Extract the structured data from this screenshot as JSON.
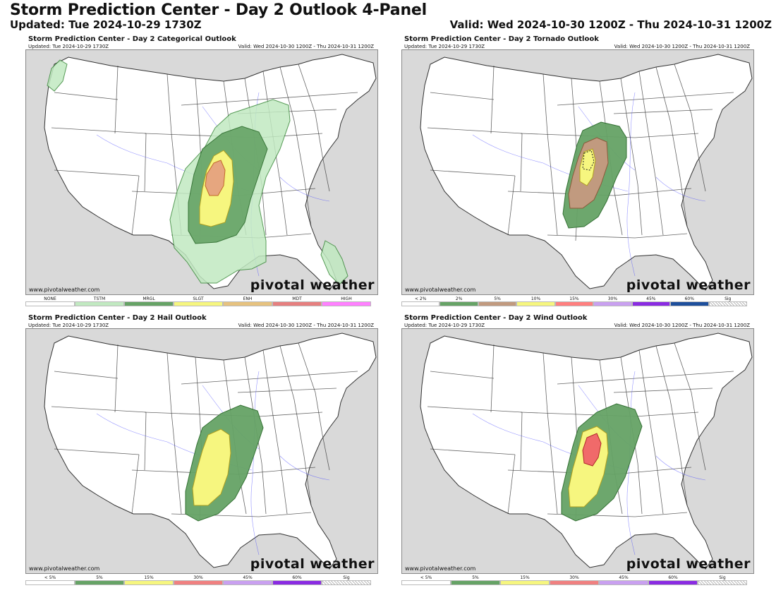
{
  "header": {
    "title": "Storm Prediction Center - Day 2 Outlook 4-Panel",
    "updated": "Updated: Tue 2024-10-29 1730Z",
    "valid": "Valid: Wed 2024-10-30 1200Z - Thu 2024-10-31 1200Z"
  },
  "panels": [
    {
      "id": "categorical",
      "title": "Storm Prediction Center - Day 2 Categorical Outlook",
      "updated": "Updated: Tue 2024-10-29 1730Z",
      "valid": "Valid: Wed 2024-10-30 1200Z - Thu 2024-10-31 1200Z",
      "watermark_url": "www.pivotalweather.com",
      "watermark_logo": "pivotal weather",
      "legend": [
        {
          "label": "NONE",
          "color": "#ffffff"
        },
        {
          "label": "TSTM",
          "color": "#c1e9c1"
        },
        {
          "label": "MRGL",
          "color": "#66a366"
        },
        {
          "label": "SLGT",
          "color": "#f6f67f"
        },
        {
          "label": "ENH",
          "color": "#e6c27f"
        },
        {
          "label": "MDT",
          "color": "#e67f7f"
        },
        {
          "label": "HIGH",
          "color": "#ff80ff"
        }
      ]
    },
    {
      "id": "tornado",
      "title": "Storm Prediction Center - Day 2 Tornado Outlook",
      "updated": "Updated: Tue 2024-10-29 1730Z",
      "valid": "Valid: Wed 2024-10-30 1200Z - Thu 2024-10-31 1200Z",
      "watermark_url": "www.pivotalweather.com",
      "watermark_logo": "pivotal weather",
      "legend": [
        {
          "label": "< 2%",
          "color": "#ffffff"
        },
        {
          "label": "2%",
          "color": "#66a366"
        },
        {
          "label": "5%",
          "color": "#c19a7f"
        },
        {
          "label": "10%",
          "color": "#f6f67f"
        },
        {
          "label": "15%",
          "color": "#ff7f7f"
        },
        {
          "label": "30%",
          "color": "#c9a0f0"
        },
        {
          "label": "45%",
          "color": "#8a2be2"
        },
        {
          "label": "60%",
          "color": "#1e4f9c"
        },
        {
          "label": "Sig",
          "color": "hatch"
        }
      ]
    },
    {
      "id": "hail",
      "title": "Storm Prediction Center - Day 2 Hail Outlook",
      "updated": "Updated: Tue 2024-10-29 1730Z",
      "valid": "Valid: Wed 2024-10-30 1200Z - Thu 2024-10-31 1200Z",
      "watermark_url": "www.pivotalweather.com",
      "watermark_logo": "pivotal weather",
      "legend": [
        {
          "label": "< 5%",
          "color": "#ffffff"
        },
        {
          "label": "5%",
          "color": "#66a366"
        },
        {
          "label": "15%",
          "color": "#f6f67f"
        },
        {
          "label": "30%",
          "color": "#f08080"
        },
        {
          "label": "45%",
          "color": "#c9a0f0"
        },
        {
          "label": "60%",
          "color": "#8a2be2"
        },
        {
          "label": "Sig",
          "color": "hatch"
        }
      ]
    },
    {
      "id": "wind",
      "title": "Storm Prediction Center - Day 2 Wind Outlook",
      "updated": "Updated: Tue 2024-10-29 1730Z",
      "valid": "Valid: Wed 2024-10-30 1200Z - Thu 2024-10-31 1200Z",
      "watermark_url": "www.pivotalweather.com",
      "watermark_logo": "pivotal weather",
      "legend": [
        {
          "label": "< 5%",
          "color": "#ffffff"
        },
        {
          "label": "5%",
          "color": "#66a366"
        },
        {
          "label": "15%",
          "color": "#f6f67f"
        },
        {
          "label": "30%",
          "color": "#f08080"
        },
        {
          "label": "45%",
          "color": "#c9a0f0"
        },
        {
          "label": "60%",
          "color": "#8a2be2"
        },
        {
          "label": "Sig",
          "color": "hatch"
        }
      ]
    }
  ],
  "colors": {
    "land": "#ffffff",
    "outside": "#d9d9d9",
    "water": "#e6e6e6",
    "state_lines": "#333333",
    "county_lines": "#bdbdbd",
    "rivers": "#4d4dff"
  }
}
